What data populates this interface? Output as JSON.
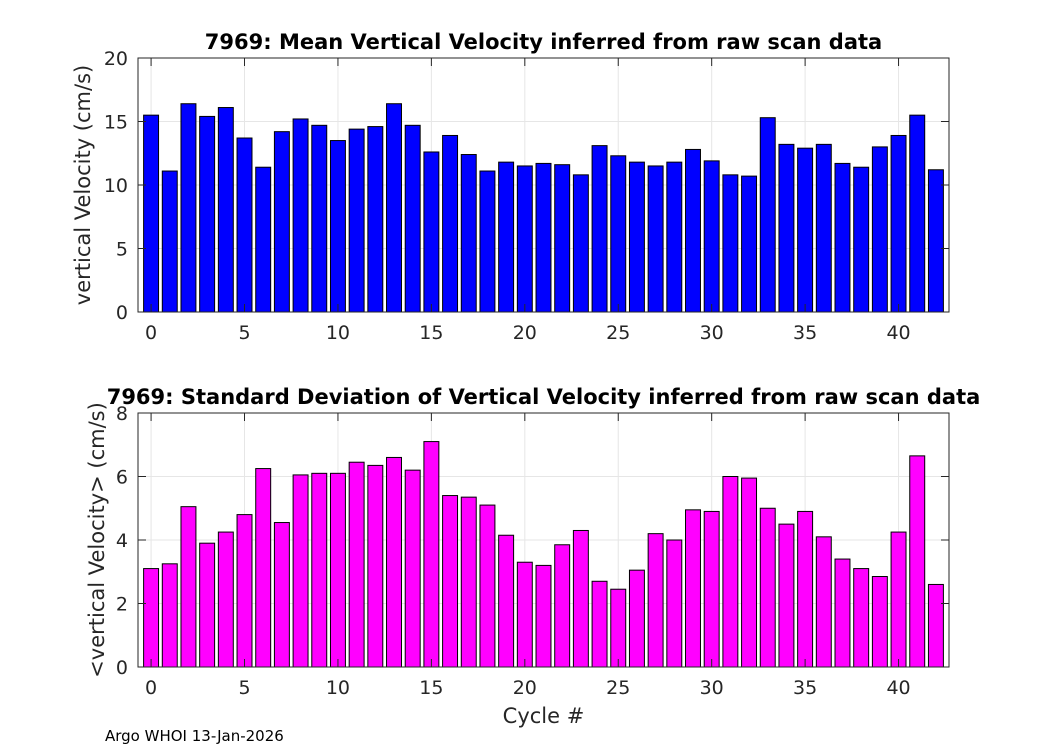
{
  "footer": "Argo WHOI 13-Jan-2026",
  "chart_data": [
    {
      "type": "bar",
      "title": "7969: Mean Vertical Velocity inferred from raw scan data",
      "xlabel": "",
      "ylabel": "vertical Velocity (cm/s)",
      "color": "#0000ff",
      "x": [
        0,
        1,
        2,
        3,
        4,
        5,
        6,
        7,
        8,
        9,
        10,
        11,
        12,
        13,
        14,
        15,
        16,
        17,
        18,
        19,
        20,
        21,
        22,
        23,
        24,
        25,
        26,
        27,
        28,
        29,
        30,
        31,
        32,
        33,
        34,
        35,
        36,
        37,
        38,
        39,
        40,
        41,
        42
      ],
      "values": [
        15.5,
        11.1,
        16.4,
        15.4,
        16.1,
        13.7,
        11.4,
        14.2,
        15.2,
        14.7,
        13.5,
        14.4,
        14.6,
        16.4,
        14.7,
        12.6,
        13.9,
        12.4,
        11.1,
        11.8,
        11.5,
        11.7,
        11.6,
        10.8,
        13.1,
        12.3,
        11.8,
        11.5,
        11.8,
        12.8,
        11.9,
        10.8,
        10.7,
        15.3,
        13.2,
        12.9,
        13.2,
        11.7,
        11.4,
        13.0,
        13.9,
        15.5,
        11.2
      ],
      "xlim": [
        -0.7,
        42.7
      ],
      "ylim": [
        0,
        20
      ],
      "xticks": [
        0,
        5,
        10,
        15,
        20,
        25,
        30,
        35,
        40
      ],
      "yticks": [
        0,
        5,
        10,
        15,
        20
      ],
      "grid": true
    },
    {
      "type": "bar",
      "title": "7969: Standard Deviation of Vertical Velocity inferred from raw scan data",
      "xlabel": "Cycle #",
      "ylabel": "<vertical Velocity> (cm/s)",
      "color": "#ff00ff",
      "x": [
        0,
        1,
        2,
        3,
        4,
        5,
        6,
        7,
        8,
        9,
        10,
        11,
        12,
        13,
        14,
        15,
        16,
        17,
        18,
        19,
        20,
        21,
        22,
        23,
        24,
        25,
        26,
        27,
        28,
        29,
        30,
        31,
        32,
        33,
        34,
        35,
        36,
        37,
        38,
        39,
        40,
        41,
        42
      ],
      "values": [
        3.1,
        3.25,
        5.05,
        3.9,
        4.25,
        4.8,
        6.25,
        4.55,
        6.05,
        6.1,
        6.1,
        6.45,
        6.35,
        6.6,
        6.2,
        7.1,
        5.4,
        5.35,
        5.1,
        4.15,
        3.3,
        3.2,
        3.85,
        4.3,
        2.7,
        2.45,
        3.05,
        4.2,
        4.0,
        4.95,
        4.9,
        6.0,
        5.95,
        5.0,
        4.5,
        4.9,
        4.1,
        3.4,
        3.1,
        2.85,
        4.25,
        6.65,
        2.6
      ],
      "xlim": [
        -0.7,
        42.7
      ],
      "ylim": [
        0,
        8
      ],
      "xticks": [
        0,
        5,
        10,
        15,
        20,
        25,
        30,
        35,
        40
      ],
      "yticks": [
        0,
        2,
        4,
        6,
        8
      ],
      "grid": true
    }
  ]
}
